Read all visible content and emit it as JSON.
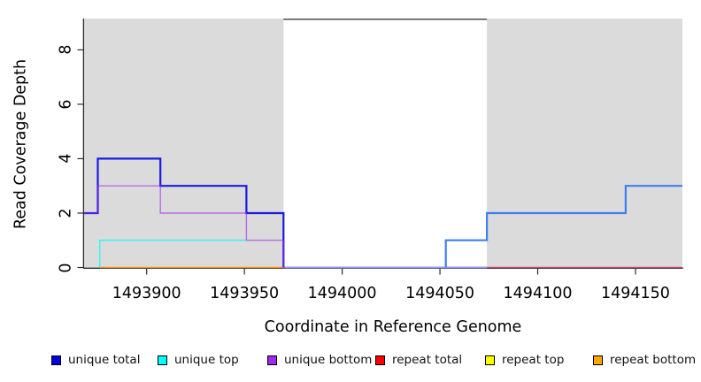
{
  "chart_data": {
    "type": "line",
    "step": true,
    "title": "",
    "xlabel": "Coordinate in Reference Genome",
    "ylabel": "Read Coverage Depth",
    "xlim": [
      1493868,
      1494174
    ],
    "ylim": [
      0,
      9.15
    ],
    "x_ticks": [
      1493900,
      1493950,
      1494000,
      1494050,
      1494100,
      1494150
    ],
    "y_ticks": [
      0,
      2,
      4,
      6,
      8
    ],
    "grid": false,
    "background_color": "#ffffff",
    "shaded_region_color": "#dbdbdb",
    "shaded_regions": [
      {
        "name": "repeat-region-left",
        "x0": 1493868,
        "x1": 1493970
      },
      {
        "name": "repeat-region-right",
        "x0": 1494074,
        "x1": 1494174
      }
    ],
    "top_boundary_line": {
      "x0": 1493970,
      "x1": 1494074,
      "color": "#4a4a4a"
    },
    "series": [
      {
        "name": "unique total",
        "color": "#0000e0",
        "step_x": [
          1493868,
          1493875,
          1493907,
          1493951,
          1493970,
          1494053,
          1494074,
          1494145
        ],
        "step_y": [
          2,
          4,
          3,
          2,
          0,
          1,
          2,
          3
        ],
        "x_end": 1494174
      },
      {
        "name": "unique top",
        "color": "#00ffff",
        "step_x": [
          1493868,
          1493876,
          1493970,
          1494053,
          1494074,
          1494145
        ],
        "step_y": [
          0,
          1,
          0,
          1,
          2,
          3
        ],
        "x_end": 1494174
      },
      {
        "name": "unique bottom",
        "color": "#a020f0",
        "step_x": [
          1493868,
          1493875,
          1493907,
          1493951,
          1493970
        ],
        "step_y": [
          2,
          3,
          2,
          1,
          0
        ],
        "x_end": 1494174
      },
      {
        "name": "repeat total",
        "color": "#ff0000",
        "step_x": [
          1493868
        ],
        "step_y": [
          0
        ],
        "x_end": 1494174
      },
      {
        "name": "repeat top",
        "color": "#ffff00",
        "step_x": [
          1493868
        ],
        "step_y": [
          0
        ],
        "x_end": 1494174
      },
      {
        "name": "repeat bottom",
        "color": "#ffa500",
        "step_x": [
          1493868
        ],
        "step_y": [
          0
        ],
        "x_end": 1494174
      }
    ],
    "render_segments": [
      {
        "name": "zero-line-middle",
        "color": "#9795ec",
        "width": 2.0,
        "opacity": 1,
        "pts": [
          [
            1493970,
            0
          ],
          [
            1494074,
            0
          ]
        ]
      },
      {
        "name": "repeat-zero-left",
        "color": "#f5941f",
        "width": 1.6,
        "opacity": 1,
        "pts": [
          [
            1493876,
            0
          ],
          [
            1493970,
            0
          ]
        ]
      },
      {
        "name": "repeat-zero-right",
        "color": "#c84a6b",
        "width": 1.6,
        "opacity": 1,
        "pts": [
          [
            1494074,
            0
          ],
          [
            1494174,
            0
          ]
        ]
      },
      {
        "name": "unique-total-left",
        "color": "#1a1ae0",
        "width": 2.2,
        "opacity": 1,
        "pts": [
          [
            1493868,
            2
          ],
          [
            1493875,
            2
          ],
          [
            1493875,
            4
          ],
          [
            1493907,
            4
          ],
          [
            1493907,
            3
          ],
          [
            1493951,
            3
          ],
          [
            1493951,
            2
          ],
          [
            1493970,
            2
          ],
          [
            1493970,
            0
          ]
        ]
      },
      {
        "name": "unique-top-left",
        "color": "#00ffff",
        "width": 1.4,
        "opacity": 0.8,
        "pts": [
          [
            1493876,
            0
          ],
          [
            1493876,
            1
          ],
          [
            1493951,
            1
          ]
        ]
      },
      {
        "name": "unique-bottom-left",
        "color": "#a020f0",
        "width": 1.4,
        "opacity": 0.6,
        "pts": [
          [
            1493868,
            2
          ],
          [
            1493875,
            2
          ],
          [
            1493875,
            3
          ],
          [
            1493907,
            3
          ],
          [
            1493907,
            2
          ],
          [
            1493951,
            2
          ],
          [
            1493951,
            1
          ],
          [
            1493970,
            1
          ],
          [
            1493970,
            0
          ]
        ]
      },
      {
        "name": "unique-total-right",
        "color": "#3d7ef7",
        "width": 2.2,
        "opacity": 1,
        "pts": [
          [
            1494053,
            0
          ],
          [
            1494053,
            1
          ],
          [
            1494074,
            1
          ],
          [
            1494074,
            2
          ],
          [
            1494145,
            2
          ],
          [
            1494145,
            3
          ],
          [
            1494174,
            3
          ]
        ]
      }
    ],
    "legend": {
      "position": "bottom",
      "entries": [
        {
          "label": "unique total",
          "color": "#0000e0"
        },
        {
          "label": "unique top",
          "color": "#00ffff"
        },
        {
          "label": "unique bottom",
          "color": "#a228ee"
        },
        {
          "label": "repeat total",
          "color": "#ff0000"
        },
        {
          "label": "repeat top",
          "color": "#ffff00"
        },
        {
          "label": "repeat bottom",
          "color": "#ffa500"
        }
      ]
    }
  }
}
